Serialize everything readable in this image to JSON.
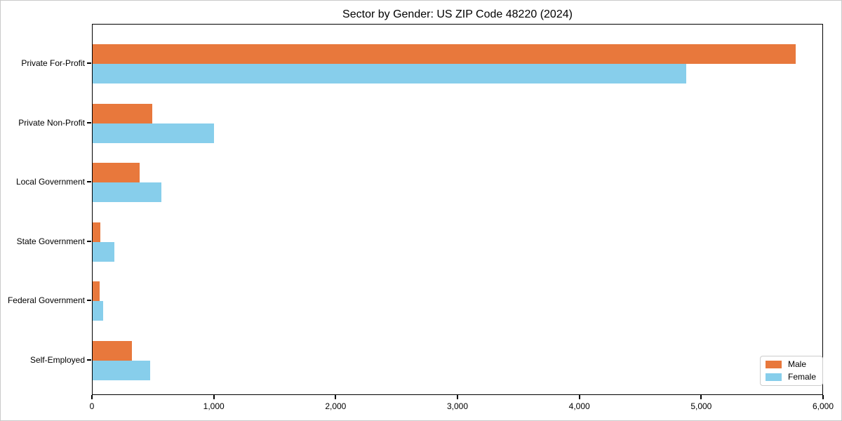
{
  "title": "Sector by Gender: US ZIP Code 48220 (2024)",
  "legend": {
    "position": "lower right",
    "items": [
      {
        "label": "Male",
        "color": "#E8783C"
      },
      {
        "label": "Female",
        "color": "#87CEEB"
      }
    ]
  },
  "chart_data": {
    "type": "bar",
    "orientation": "horizontal",
    "title": "Sector by Gender: US ZIP Code 48220 (2024)",
    "categories": [
      "Private For-Profit",
      "Private Non-Profit",
      "Local Government",
      "State Government",
      "Federal Government",
      "Self-Employed"
    ],
    "series": [
      {
        "name": "Male",
        "color": "#E8783C",
        "values": [
          5770,
          490,
          385,
          65,
          55,
          320
        ]
      },
      {
        "name": "Female",
        "color": "#87CEEB",
        "values": [
          4870,
          995,
          565,
          180,
          85,
          470
        ]
      }
    ],
    "xlabel": "",
    "ylabel": "",
    "xlim": [
      0,
      6000
    ],
    "xticks": [
      0,
      1000,
      2000,
      3000,
      4000,
      5000,
      6000
    ],
    "xtick_labels": [
      "0",
      "1,000",
      "2,000",
      "3,000",
      "4,000",
      "5,000",
      "6,000"
    ],
    "grid": false,
    "legend_position": "lower right"
  }
}
